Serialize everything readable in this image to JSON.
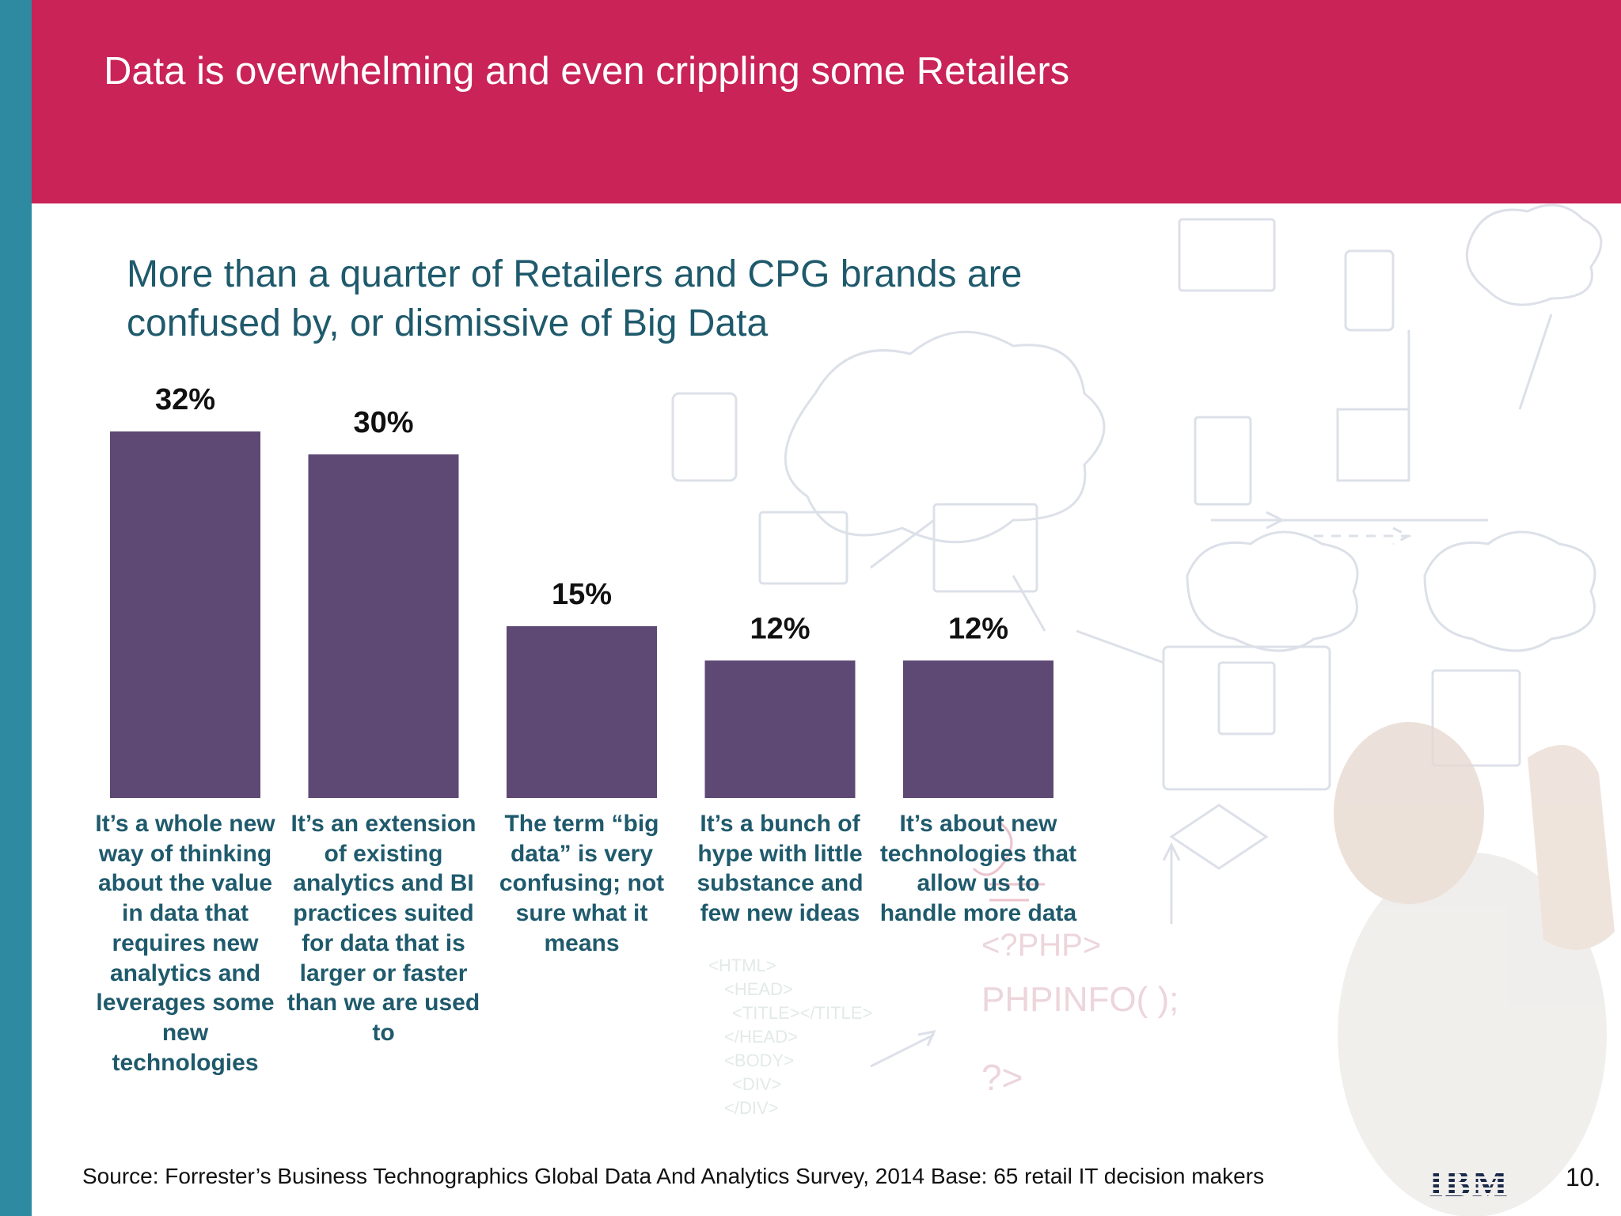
{
  "slide": {
    "title": "Data is overwhelming and even crippling some Retailers",
    "headline": "More than a quarter of Retailers and CPG brands are confused by, or dismissive of Big Data",
    "source": "Source: Forrester’s Business Technographics Global Data And Analytics Survey, 2014   Base: 65 retail IT decision makers",
    "logo_text": "IBM",
    "page_number": "10."
  },
  "colors": {
    "header": "#c92357",
    "left_stripe": "#2e8aa0",
    "bar": "#5e4874",
    "label_text": "#1f5a6c"
  },
  "chart_data": {
    "type": "bar",
    "categories": [
      "It’s a whole new way of thinking about the value in data that requires new analytics and leverages some new technologies",
      "It’s an extension of existing analytics and BI practices suited for data that is larger or faster than we are used to",
      "The term “big data” is very confusing; not sure what it means",
      "It’s a bunch of hype with little substance and few new ideas",
      "It’s about new technologies that allow us to handle more data"
    ],
    "values": [
      32,
      30,
      15,
      12,
      12
    ],
    "data_labels": [
      "32%",
      "30%",
      "15%",
      "12%",
      "12%"
    ],
    "ylim": [
      0,
      32
    ],
    "grid": false,
    "legend": "none"
  }
}
